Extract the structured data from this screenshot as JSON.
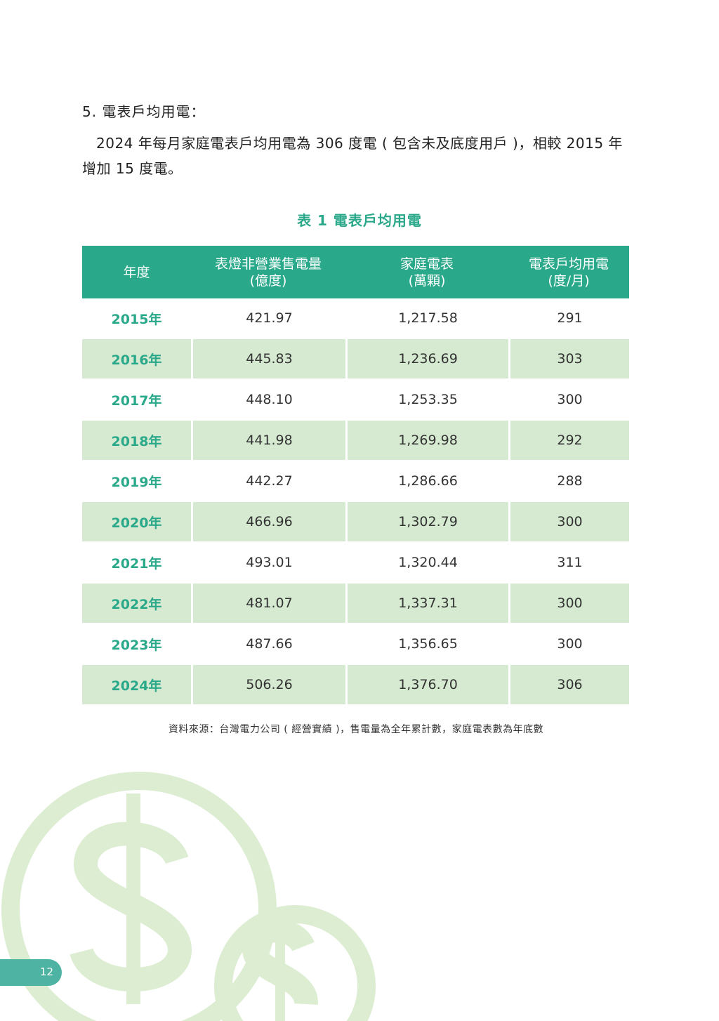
{
  "section_heading": "5. 電表戶均用電：",
  "paragraph": {
    "line1": "2024 年每月家庭電表戶均用電為 306 度電 ( 包含未及底度用戶 )，相較 2015 年",
    "line2": "增加 15 度電。"
  },
  "table": {
    "title": "表 1 電表戶均用電",
    "headers": [
      {
        "line1": "年度",
        "line2": ""
      },
      {
        "line1": "表燈非營業售電量",
        "line2": "(億度)"
      },
      {
        "line1": "家庭電表",
        "line2": "(萬顆)"
      },
      {
        "line1": "電表戶均用電",
        "line2": "(度/月)"
      }
    ],
    "rows": [
      [
        "2015年",
        "421.97",
        "1,217.58",
        "291"
      ],
      [
        "2016年",
        "445.83",
        "1,236.69",
        "303"
      ],
      [
        "2017年",
        "448.10",
        "1,253.35",
        "300"
      ],
      [
        "2018年",
        "441.98",
        "1,269.98",
        "292"
      ],
      [
        "2019年",
        "442.27",
        "1,286.66",
        "288"
      ],
      [
        "2020年",
        "466.96",
        "1,302.79",
        "300"
      ],
      [
        "2021年",
        "493.01",
        "1,320.44",
        "311"
      ],
      [
        "2022年",
        "481.07",
        "1,337.31",
        "300"
      ],
      [
        "2023年",
        "487.66",
        "1,356.65",
        "300"
      ],
      [
        "2024年",
        "506.26",
        "1,376.70",
        "306"
      ]
    ]
  },
  "source_note": "資料來源：台灣電力公司 ( 經營實績 )，售電量為全年累計數，家庭電表數為年底數",
  "page_number": "12",
  "decoration": {
    "icon": "dollar-coins-icon",
    "color": "#dcedd2"
  },
  "colors": {
    "accent": "#2aa88a",
    "row_shade": "#d5ead0",
    "page_tab": "#4fb3a3"
  }
}
